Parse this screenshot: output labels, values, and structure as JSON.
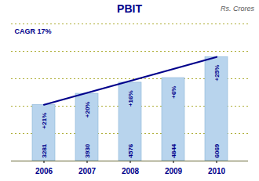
{
  "chart_data": {
    "type": "bar",
    "title": "PBIT",
    "subtitle": "Rs. Crores",
    "categories": [
      "2006",
      "2007",
      "2008",
      "2009",
      "2010"
    ],
    "values": [
      3281,
      3930,
      4576,
      4844,
      6069
    ],
    "color": "#b8d4ed",
    "annotations": [
      {
        "text": "CAGR 17%"
      },
      {
        "text": "+21%",
        "x": "2006"
      },
      {
        "text": "+20%",
        "x": "2007"
      },
      {
        "text": "+16%",
        "x": "2008"
      },
      {
        "text": "+6%",
        "x": "2009"
      },
      {
        "text": "+25%",
        "x": "2010"
      }
    ],
    "ylim": [
      0,
      8000
    ],
    "yticks": [
      0,
      1600,
      3200,
      4800,
      6400,
      8000
    ],
    "grid": true,
    "data_labels": true,
    "tick_labels": "x"
  }
}
